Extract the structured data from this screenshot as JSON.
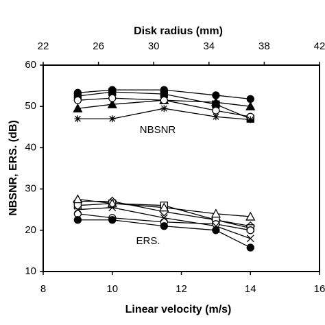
{
  "chart_data": {
    "type": "line",
    "xlabel": "Linear velocity (m/s)",
    "x2label": "Disk radius (mm)",
    "ylabel": "NBSNR, ERS. (dB)",
    "annotations": [
      "NBSNR",
      "ERS."
    ],
    "x": [
      9,
      10,
      11.5,
      13,
      14
    ],
    "xlim": [
      8,
      16
    ],
    "xticks": [
      8,
      10,
      12,
      14,
      16
    ],
    "x2lim": [
      22,
      42
    ],
    "x2ticks": [
      22,
      26,
      30,
      34,
      38,
      42
    ],
    "ylim": [
      10,
      60
    ],
    "yticks": [
      10,
      20,
      30,
      40,
      50,
      60
    ],
    "color": "#000000",
    "series": [
      {
        "marker": "circle-filled",
        "values": [
          53.3,
          54,
          54,
          52.7,
          51.8
        ]
      },
      {
        "marker": "square-filled",
        "values": [
          52.5,
          53.5,
          53,
          50.5,
          47
        ]
      },
      {
        "marker": "triangle-filled",
        "values": [
          49.5,
          50.5,
          51.5,
          51,
          50
        ]
      },
      {
        "marker": "circle-open",
        "values": [
          51.5,
          52,
          51.5,
          49,
          47.5
        ]
      },
      {
        "marker": "star",
        "values": [
          47,
          47,
          49.5,
          47.5,
          46.8
        ]
      },
      {
        "marker": "diamond-open",
        "values": [
          27,
          27,
          24.5,
          22.5,
          21
        ]
      },
      {
        "marker": "square-open",
        "values": [
          26,
          26.5,
          26,
          22.5,
          20.5
        ]
      },
      {
        "marker": "triangle-open",
        "values": [
          27.5,
          26.5,
          25.5,
          24,
          23.3
        ]
      },
      {
        "marker": "circle-open",
        "values": [
          24,
          23,
          22,
          21.5,
          20
        ]
      },
      {
        "marker": "circle-filled",
        "values": [
          22.5,
          22.5,
          21,
          20,
          15.8
        ]
      },
      {
        "marker": "x",
        "values": [
          25,
          25.5,
          23,
          21,
          18
        ]
      }
    ]
  }
}
